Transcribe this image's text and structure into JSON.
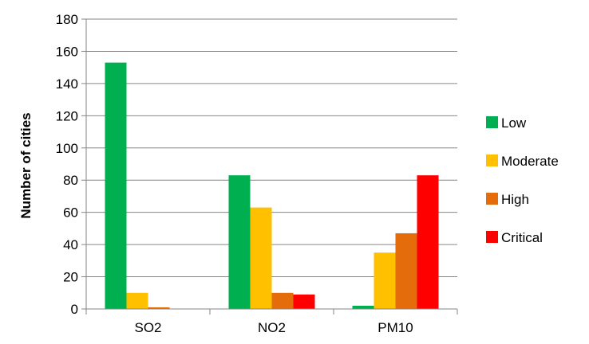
{
  "chart_data": {
    "type": "bar",
    "title": "",
    "xlabel": "",
    "ylabel": "Number of cities",
    "categories": [
      "SO2",
      "NO2",
      "PM10"
    ],
    "series": [
      {
        "name": "Low",
        "values": [
          153,
          83,
          2
        ],
        "color": "#00b050"
      },
      {
        "name": "Moderate",
        "values": [
          10,
          63,
          35
        ],
        "color": "#ffc000"
      },
      {
        "name": "High",
        "values": [
          1,
          10,
          47
        ],
        "color": "#e46c0a"
      },
      {
        "name": "Critical",
        "values": [
          0,
          9,
          83
        ],
        "color": "#ff0000"
      }
    ],
    "ylim": [
      0,
      180
    ],
    "yticks": [
      "0",
      "20",
      "40",
      "60",
      "80",
      "100",
      "120",
      "140",
      "160",
      "180"
    ],
    "grid": true,
    "legend_position": "right"
  }
}
